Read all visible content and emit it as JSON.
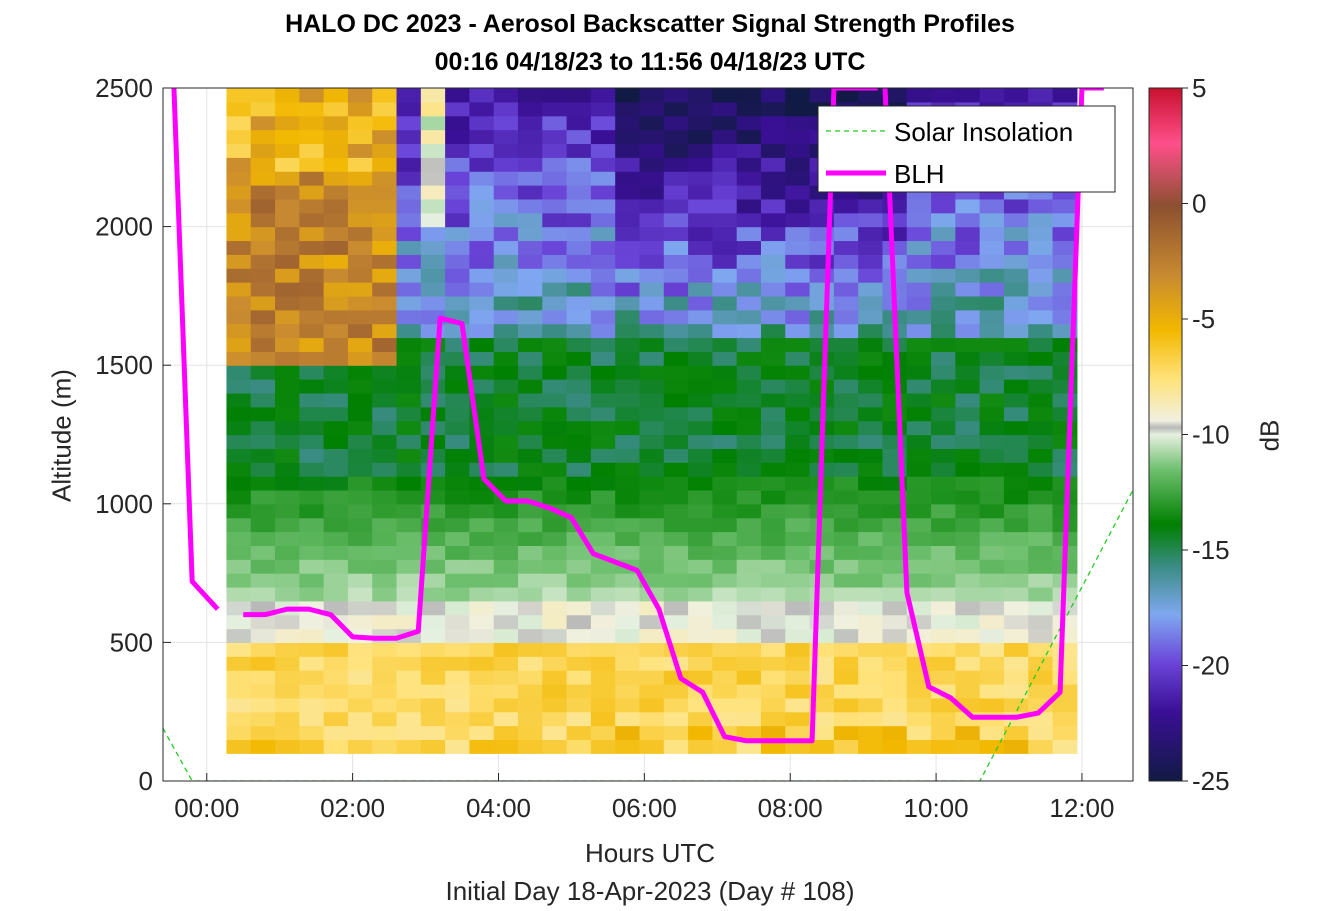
{
  "chart_data": {
    "type": "heatmap",
    "title": "HALO DC 2023 - Aerosol Backscatter Signal Strength Profiles",
    "subtitle": "00:16 04/18/23 to 11:56 04/18/23  UTC",
    "xlabel": "Hours UTC",
    "ylabel": "Altitude (m)",
    "footer": "Initial Day 18-Apr-2023 (Day # 108)",
    "colorbar_label": "dB",
    "xlim": [
      -0.6,
      12.7
    ],
    "ylim": [
      0,
      2500
    ],
    "x_ticks": [
      0,
      2,
      4,
      6,
      8,
      10,
      12
    ],
    "x_tick_labels": [
      "00:00",
      "02:00",
      "04:00",
      "06:00",
      "08:00",
      "10:00",
      "12:00"
    ],
    "y_ticks": [
      0,
      500,
      1000,
      1500,
      2000,
      2500
    ],
    "y_tick_labels": [
      "0",
      "500",
      "1000",
      "1500",
      "2000",
      "2500"
    ],
    "colorbar_range": [
      -25,
      5
    ],
    "colorbar_ticks": [
      5,
      0,
      -5,
      -10,
      -15,
      -20,
      -25
    ],
    "colorbar_tick_labels": [
      "5",
      "0",
      "-5",
      "-10",
      "-15",
      "-20",
      "-25"
    ],
    "grid": true,
    "legend_position": "top-right",
    "heatmap": {
      "x_start": 0.27,
      "x_end": 11.93,
      "x_bins": 35,
      "y_start": 100,
      "y_end": 2500,
      "y_bins": 48,
      "value_range": [
        -25,
        5
      ]
    },
    "series": [
      {
        "name": "Solar Insolation",
        "style": "dashed",
        "color": "#22cc22",
        "x": [
          -0.6,
          -0.2,
          10.6,
          12.7
        ],
        "y": [
          190,
          0,
          0,
          1050
        ]
      },
      {
        "name": "BLH",
        "style": "solid",
        "color": "#ff00ff",
        "segments": [
          {
            "x": [
              -0.45,
              -0.2,
              0.15
            ],
            "y": [
              2500,
              720,
              620
            ]
          },
          {
            "x": [
              0.5,
              0.8,
              1.1,
              1.4,
              1.7,
              2.0,
              2.3,
              2.6,
              2.9,
              3.2,
              3.5,
              3.8,
              4.1,
              4.4,
              4.7,
              5.0,
              5.3,
              5.6,
              5.9,
              6.2,
              6.5,
              6.8,
              7.1,
              7.4,
              7.7,
              8.0,
              8.3,
              8.6,
              8.9,
              9.2
            ],
            "y": [
              600,
              600,
              620,
              620,
              600,
              520,
              515,
              515,
              540,
              1670,
              1650,
              1090,
              1010,
              1010,
              985,
              950,
              820,
              790,
              760,
              620,
              370,
              320,
              160,
              145,
              145,
              145,
              145,
              2500,
              2500,
              2500
            ]
          },
          {
            "x": [
              9.3,
              9.6,
              9.9,
              10.2,
              10.5,
              10.8,
              11.1,
              11.4,
              11.7,
              12.0,
              12.3
            ],
            "y": [
              2500,
              680,
              340,
              300,
              230,
              230,
              230,
              245,
              320,
              2500,
              2500
            ]
          }
        ]
      }
    ]
  }
}
